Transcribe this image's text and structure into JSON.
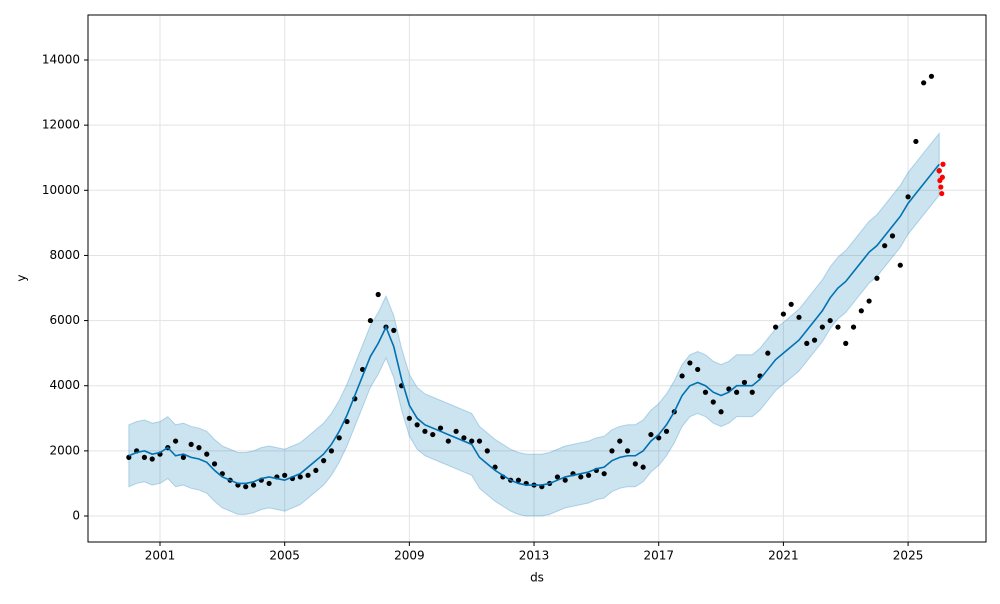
{
  "chart_data": {
    "type": "forecast",
    "xlabel": "ds",
    "ylabel": "y",
    "xlim": [
      1998.69,
      2027.5
    ],
    "xticks": [
      2001,
      2005,
      2009,
      2013,
      2017,
      2021,
      2025
    ],
    "ylim": [
      -798,
      15382
    ],
    "yticks": [
      0,
      2000,
      4000,
      6000,
      8000,
      10000,
      12000,
      14000
    ],
    "grid": true,
    "x": [
      2000,
      2000.25,
      2000.5,
      2000.75,
      2001,
      2001.25,
      2001.5,
      2001.75,
      2002,
      2002.25,
      2002.5,
      2002.75,
      2003,
      2003.25,
      2003.5,
      2003.75,
      2004,
      2004.25,
      2004.5,
      2004.75,
      2005,
      2005.25,
      2005.5,
      2005.75,
      2006,
      2006.25,
      2006.5,
      2006.75,
      2007,
      2007.25,
      2007.5,
      2007.75,
      2008,
      2008.25,
      2008.5,
      2008.75,
      2009,
      2009.25,
      2009.5,
      2009.75,
      2010,
      2010.25,
      2010.5,
      2010.75,
      2011,
      2011.25,
      2011.5,
      2011.75,
      2012,
      2012.25,
      2012.5,
      2012.75,
      2013,
      2013.25,
      2013.5,
      2013.75,
      2014,
      2014.25,
      2014.5,
      2014.75,
      2015,
      2015.25,
      2015.5,
      2015.75,
      2016,
      2016.25,
      2016.5,
      2016.75,
      2017,
      2017.25,
      2017.5,
      2017.75,
      2018,
      2018.25,
      2018.5,
      2018.75,
      2019,
      2019.25,
      2019.5,
      2019.75,
      2020,
      2020.25,
      2020.5,
      2020.75,
      2021,
      2021.25,
      2021.5,
      2021.75,
      2022,
      2022.25,
      2022.5,
      2022.75,
      2023,
      2023.25,
      2023.5,
      2023.75,
      2024,
      2024.25,
      2024.5,
      2024.75,
      2025,
      2025.25,
      2025.5,
      2025.75,
      2026
    ],
    "interval_halfwidth": 950,
    "band_color": "#0072B2",
    "series": [
      {
        "style": "points",
        "color": "#000000",
        "values": [
          1800,
          2000,
          1800,
          1750,
          1900,
          2100,
          2300,
          1800,
          2200,
          2100,
          1900,
          1600,
          1300,
          1100,
          950,
          900,
          950,
          1100,
          1000,
          1200,
          1250,
          1150,
          1200,
          1250,
          1400,
          1700,
          2000,
          2400,
          2900,
          3600,
          4500,
          6000,
          6800,
          5800,
          5700,
          4000,
          3000,
          2800,
          2600,
          2500,
          2700,
          2300,
          2600,
          2400,
          2300,
          2300,
          2000,
          1500,
          1200,
          1100,
          1100,
          1000,
          950,
          900,
          1000,
          1200,
          1100,
          1300,
          1200,
          1250,
          1400,
          1300,
          2000,
          2300,
          2000,
          1600,
          1500,
          2500,
          2400,
          2600,
          3200,
          4300,
          4700,
          4500,
          3800,
          3500,
          3200,
          3900,
          3800,
          4100,
          3800,
          4300,
          5000,
          5800,
          6200,
          6500,
          6100,
          5300,
          5400,
          5800,
          6000,
          5800,
          5300,
          5800,
          6300,
          6600,
          7300,
          8300,
          8600,
          7700,
          9800,
          11500,
          13300,
          13500,
          10600
        ]
      },
      {
        "style": "line",
        "color": "#0072B2",
        "values": [
          1850,
          1950,
          2000,
          1900,
          1950,
          2100,
          1850,
          1900,
          1800,
          1750,
          1650,
          1400,
          1200,
          1100,
          1000,
          1000,
          1050,
          1150,
          1200,
          1150,
          1100,
          1200,
          1300,
          1500,
          1700,
          1900,
          2200,
          2600,
          3100,
          3700,
          4300,
          4900,
          5300,
          5800,
          5200,
          4200,
          3400,
          3000,
          2800,
          2700,
          2600,
          2500,
          2400,
          2300,
          2200,
          1800,
          1600,
          1400,
          1250,
          1100,
          1000,
          950,
          950,
          950,
          1000,
          1100,
          1200,
          1250,
          1300,
          1350,
          1450,
          1500,
          1700,
          1800,
          1850,
          1850,
          2000,
          2300,
          2500,
          2800,
          3200,
          3700,
          4000,
          4100,
          4000,
          3800,
          3700,
          3800,
          4000,
          4000,
          4000,
          4200,
          4500,
          4800,
          5000,
          5200,
          5400,
          5700,
          6000,
          6300,
          6700,
          7000,
          7200,
          7500,
          7800,
          8100,
          8300,
          8600,
          8900,
          9200,
          9600,
          9900,
          10200,
          10500,
          10800
        ]
      },
      {
        "style": "points",
        "color": "#ff0000",
        "x": [
          2026.0,
          2026.02,
          2026.05,
          2026.08,
          2026.1,
          2026.12
        ],
        "values": [
          10600,
          10300,
          10100,
          9900,
          10400,
          10800
        ]
      }
    ]
  }
}
